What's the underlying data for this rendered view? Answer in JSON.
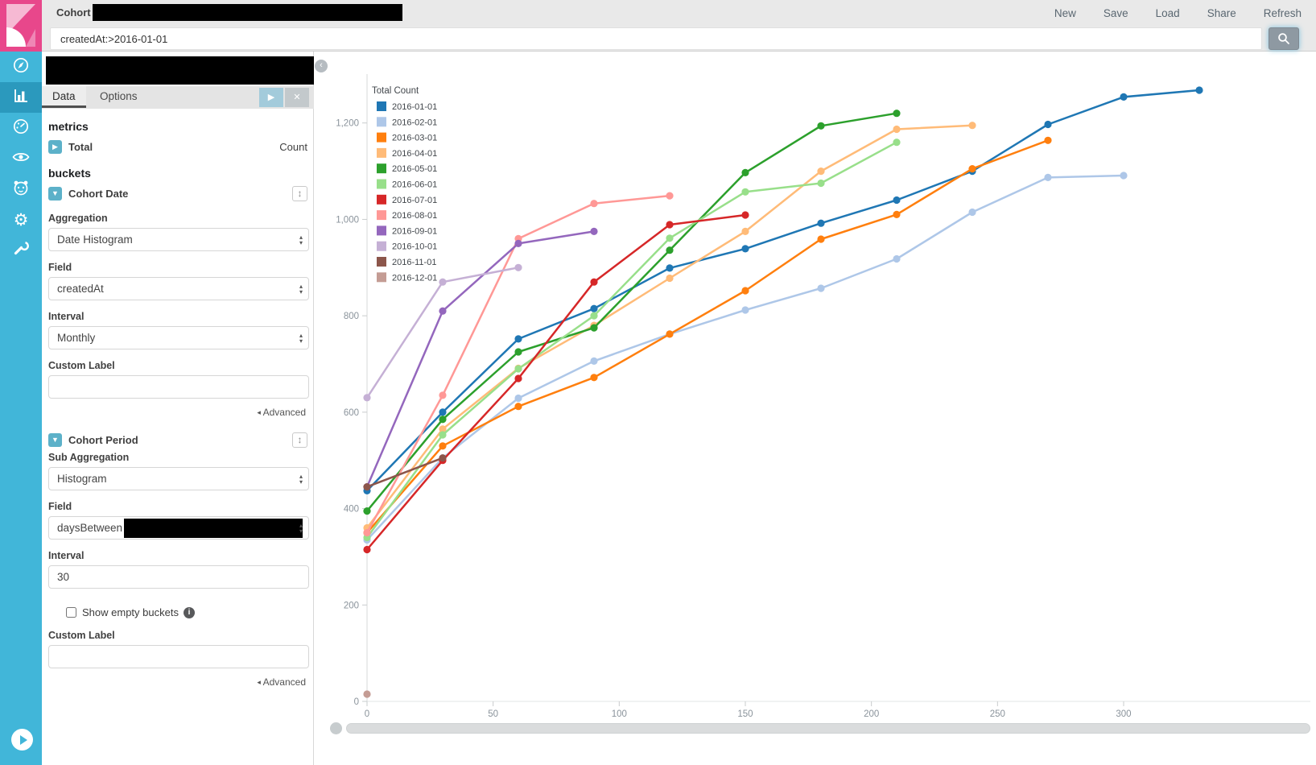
{
  "topbar": {
    "title": "Cohort",
    "menu": [
      {
        "label": "New"
      },
      {
        "label": "Save"
      },
      {
        "label": "Load"
      },
      {
        "label": "Share"
      },
      {
        "label": "Refresh"
      }
    ]
  },
  "searchbar": {
    "value": "createdAt:>2016-01-01"
  },
  "sidebar": {
    "icons": [
      {
        "name": "compass-icon",
        "active": false
      },
      {
        "name": "bar-chart-icon",
        "active": true
      },
      {
        "name": "gauge-icon",
        "active": false
      },
      {
        "name": "eye-icon",
        "active": false
      },
      {
        "name": "face-icon",
        "active": false
      },
      {
        "name": "gear-icon",
        "active": false
      },
      {
        "name": "wrench-icon",
        "active": false
      }
    ]
  },
  "panel": {
    "tabs": [
      {
        "label": "Data",
        "active": true
      },
      {
        "label": "Options",
        "active": false
      }
    ],
    "metrics_heading": "metrics",
    "total": {
      "label": "Total",
      "value": "Count"
    },
    "buckets_heading": "buckets",
    "cohort_date": {
      "title": "Cohort Date",
      "aggregation_label": "Aggregation",
      "aggregation_value": "Date Histogram",
      "field_label": "Field",
      "field_value": "createdAt",
      "interval_label": "Interval",
      "interval_value": "Monthly",
      "custom_label_label": "Custom Label",
      "custom_label_value": "",
      "advanced_label": "Advanced"
    },
    "cohort_period": {
      "title": "Cohort Period",
      "sub_aggregation_label": "Sub Aggregation",
      "sub_aggregation_value": "Histogram",
      "field_label": "Field",
      "field_value": "daysBetween",
      "interval_label": "Interval",
      "interval_value": "30",
      "show_empty_label": "Show empty buckets",
      "custom_label_label": "Custom Label",
      "custom_label_value": "",
      "advanced_label": "Advanced"
    }
  },
  "chart_data": {
    "type": "line",
    "legend_title": "Total Count",
    "legend_position": "top-left",
    "grid": false,
    "x_step": 30,
    "xlabel": "",
    "ylabel": "",
    "xlim": [
      0,
      340
    ],
    "ylim": [
      0,
      1300
    ],
    "x_ticks": [
      0,
      50,
      100,
      150,
      200,
      250,
      300
    ],
    "y_ticks": [
      0,
      200,
      400,
      600,
      800,
      1000,
      1200
    ],
    "series": [
      {
        "name": "2016-01-01",
        "color": "#1f77b4",
        "values": [
          437,
          600,
          752,
          815,
          899,
          939,
          992,
          1040,
          1100,
          1197,
          1254,
          1268
        ]
      },
      {
        "name": "2016-02-01",
        "color": "#aec7e8",
        "values": [
          335,
          505,
          629,
          706,
          762,
          812,
          857,
          918,
          1015,
          1087,
          1091
        ]
      },
      {
        "name": "2016-03-01",
        "color": "#ff7f0e",
        "values": [
          350,
          530,
          612,
          672,
          762,
          852,
          959,
          1010,
          1105,
          1164
        ]
      },
      {
        "name": "2016-04-01",
        "color": "#ffbb78",
        "values": [
          360,
          565,
          691,
          780,
          878,
          975,
          1100,
          1187,
          1195
        ]
      },
      {
        "name": "2016-05-01",
        "color": "#2ca02c",
        "values": [
          395,
          585,
          725,
          775,
          936,
          1097,
          1194,
          1220
        ]
      },
      {
        "name": "2016-06-01",
        "color": "#98df8a",
        "values": [
          340,
          553,
          690,
          800,
          961,
          1057,
          1075,
          1160
        ]
      },
      {
        "name": "2016-07-01",
        "color": "#d62728",
        "values": [
          315,
          500,
          670,
          870,
          989,
          1009
        ]
      },
      {
        "name": "2016-08-01",
        "color": "#ff9896",
        "values": [
          350,
          635,
          960,
          1033,
          1049
        ]
      },
      {
        "name": "2016-09-01",
        "color": "#9467bd",
        "values": [
          445,
          810,
          950,
          975
        ]
      },
      {
        "name": "2016-10-01",
        "color": "#c5b0d5",
        "values": [
          630,
          870,
          900
        ]
      },
      {
        "name": "2016-11-01",
        "color": "#8c564b",
        "values": [
          445,
          505
        ]
      },
      {
        "name": "2016-12-01",
        "color": "#c49c94",
        "values": [
          15
        ]
      }
    ]
  }
}
